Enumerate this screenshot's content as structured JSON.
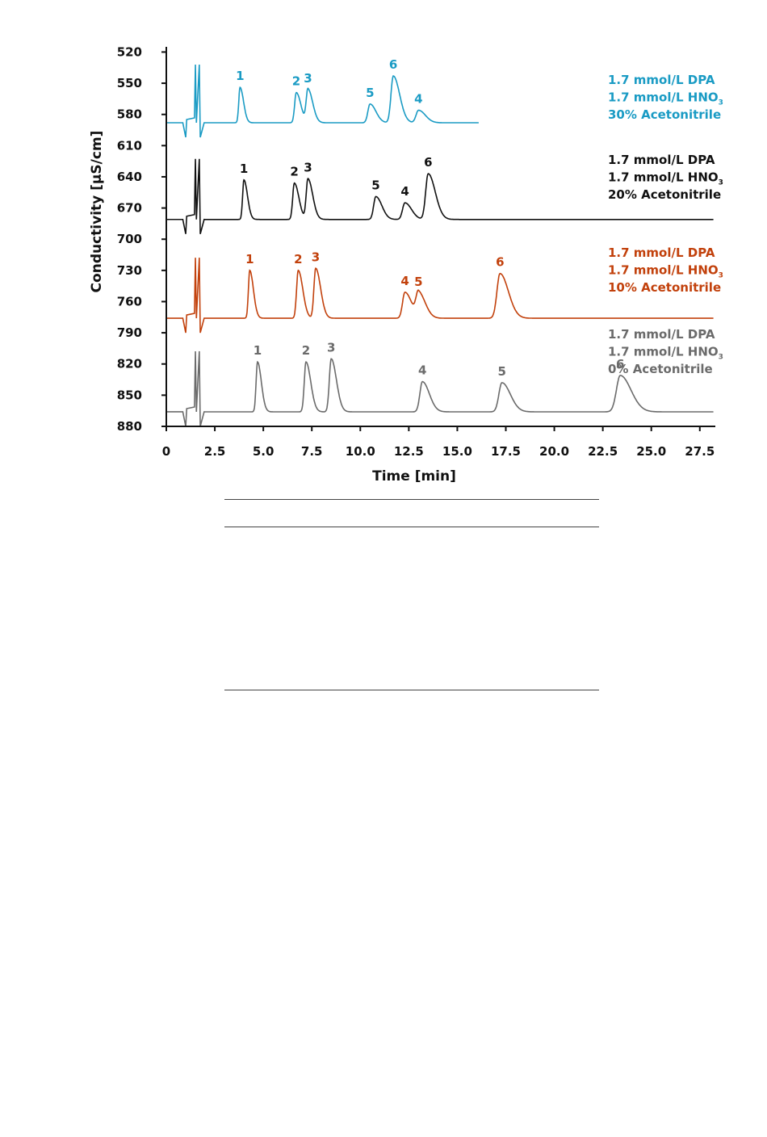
{
  "chart_data": {
    "type": "line",
    "xlabel": "Time [min]",
    "ylabel": "Conductivity [µS/cm]",
    "xlim": [
      0,
      28.3
    ],
    "ylim": [
      515,
      880
    ],
    "y_inverted": true,
    "grid": false,
    "x_ticks": [
      "0",
      "2.5",
      "5.0",
      "7.5",
      "10.0",
      "12.5",
      "15.0",
      "17.5",
      "20.0",
      "22.5",
      "25.0",
      "27.5"
    ],
    "y_ticks": [
      "520",
      "550",
      "580",
      "610",
      "640",
      "670",
      "700",
      "730",
      "760",
      "790",
      "820",
      "850",
      "880"
    ],
    "series": [
      {
        "name": "30% Acetonitrile",
        "color": "#1a9bc4",
        "label_lines": [
          "1.7 mmol/L DPA",
          "1.7 mmol/L HNO",
          "30% Acetonitrile"
        ],
        "baseline": 588,
        "x_start": 0,
        "x_end": 16.1,
        "peaks": [
          {
            "label": "1",
            "x": 3.8,
            "y": 554
          },
          {
            "label": "2",
            "x": 6.7,
            "y": 559
          },
          {
            "label": "3",
            "x": 7.3,
            "y": 556
          },
          {
            "label": "5",
            "x": 10.5,
            "y": 570
          },
          {
            "label": "6",
            "x": 11.7,
            "y": 543
          },
          {
            "label": "4",
            "x": 13.0,
            "y": 576
          }
        ]
      },
      {
        "name": "20% Acetonitrile",
        "color": "#111111",
        "label_lines": [
          "1.7 mmol/L DPA",
          "1.7 mmol/L HNO",
          "20% Acetonitrile"
        ],
        "baseline": 681,
        "x_start": 0,
        "x_end": 28.2,
        "peaks": [
          {
            "label": "1",
            "x": 4.0,
            "y": 643
          },
          {
            "label": "2",
            "x": 6.6,
            "y": 646
          },
          {
            "label": "3",
            "x": 7.3,
            "y": 642
          },
          {
            "label": "5",
            "x": 10.8,
            "y": 659
          },
          {
            "label": "4",
            "x": 12.3,
            "y": 665
          },
          {
            "label": "6",
            "x": 13.5,
            "y": 637
          }
        ]
      },
      {
        "name": "10% Acetonitrile",
        "color": "#c2410c",
        "label_lines": [
          "1.7 mmol/L DPA",
          "1.7 mmol/L HNO",
          "10% Acetonitrile"
        ],
        "baseline": 776,
        "x_start": 0,
        "x_end": 28.2,
        "peaks": [
          {
            "label": "1",
            "x": 4.3,
            "y": 730
          },
          {
            "label": "2",
            "x": 6.8,
            "y": 730
          },
          {
            "label": "3",
            "x": 7.7,
            "y": 728
          },
          {
            "label": "4",
            "x": 12.3,
            "y": 751
          },
          {
            "label": "5",
            "x": 13.0,
            "y": 752
          },
          {
            "label": "6",
            "x": 17.2,
            "y": 733
          }
        ]
      },
      {
        "name": "0% Acetonitrile",
        "color": "#6b6b6b",
        "label_lines": [
          "1.7 mmol/L DPA",
          "1.7 mmol/L HNO",
          "0% Acetonitrile"
        ],
        "baseline": 866,
        "x_start": 0,
        "x_end": 28.2,
        "peaks": [
          {
            "label": "1",
            "x": 4.7,
            "y": 818
          },
          {
            "label": "2",
            "x": 7.2,
            "y": 818
          },
          {
            "label": "3",
            "x": 8.5,
            "y": 815
          },
          {
            "label": "4",
            "x": 13.2,
            "y": 837
          },
          {
            "label": "5",
            "x": 17.3,
            "y": 838
          },
          {
            "label": "6",
            "x": 23.4,
            "y": 831
          }
        ]
      }
    ]
  }
}
